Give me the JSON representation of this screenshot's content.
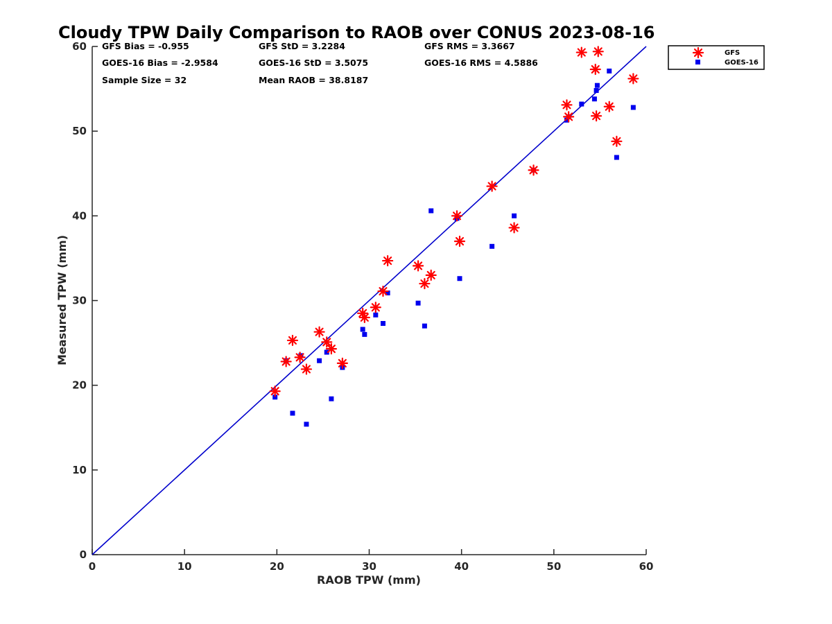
{
  "chart_data": {
    "type": "scatter",
    "title": "Cloudy TPW Daily Comparison to RAOB over CONUS 2023-08-16",
    "xlabel": "RAOB TPW (mm)",
    "ylabel": "Measured TPW (mm)",
    "xlim": [
      0,
      60
    ],
    "ylim": [
      0,
      60
    ],
    "xticks": [
      "0",
      "10",
      "20",
      "30",
      "40",
      "50",
      "60"
    ],
    "yticks": [
      "0",
      "10",
      "20",
      "30",
      "40",
      "50",
      "60"
    ],
    "grid": false,
    "legend_position": "outside-top-right",
    "stats": [
      [
        "GFS Bias = -0.955",
        "GFS StD = 3.2284",
        "GFS RMS = 3.3667"
      ],
      [
        "GOES-16 Bias = -2.9584",
        "GOES-16 StD = 3.5075",
        "GOES-16 RMS = 4.5886"
      ],
      [
        "Sample Size = 32",
        "Mean RAOB = 38.8187"
      ]
    ],
    "reference_line": {
      "from": [
        0,
        0
      ],
      "to": [
        60,
        60
      ],
      "color": "#0000cc"
    },
    "series": [
      {
        "name": "GFS",
        "marker": "asterisk",
        "color": "#ff0000",
        "points": [
          [
            19.8,
            19.3
          ],
          [
            21.0,
            22.8
          ],
          [
            21.7,
            25.3
          ],
          [
            22.5,
            23.3
          ],
          [
            23.2,
            21.9
          ],
          [
            24.6,
            26.3
          ],
          [
            25.4,
            25.1
          ],
          [
            25.9,
            24.3
          ],
          [
            27.1,
            22.6
          ],
          [
            29.3,
            28.5
          ],
          [
            29.5,
            28.0
          ],
          [
            30.7,
            29.2
          ],
          [
            31.5,
            31.1
          ],
          [
            32.0,
            34.7
          ],
          [
            35.3,
            34.1
          ],
          [
            36.0,
            32.0
          ],
          [
            36.7,
            33.0
          ],
          [
            39.5,
            40.0
          ],
          [
            39.8,
            37.0
          ],
          [
            43.3,
            43.5
          ],
          [
            45.7,
            38.6
          ],
          [
            47.8,
            45.4
          ],
          [
            51.4,
            53.1
          ],
          [
            51.6,
            51.7
          ],
          [
            53.0,
            59.3
          ],
          [
            54.5,
            57.3
          ],
          [
            54.6,
            51.8
          ],
          [
            54.8,
            59.4
          ],
          [
            56.0,
            52.9
          ],
          [
            56.8,
            48.8
          ],
          [
            58.6,
            56.2
          ]
        ]
      },
      {
        "name": "GOES-16",
        "marker": "square",
        "color": "#0000ee",
        "points": [
          [
            19.8,
            18.6
          ],
          [
            21.0,
            22.9
          ],
          [
            21.7,
            16.7
          ],
          [
            22.6,
            23.5
          ],
          [
            23.2,
            15.4
          ],
          [
            24.6,
            22.9
          ],
          [
            25.4,
            23.9
          ],
          [
            25.9,
            18.4
          ],
          [
            27.1,
            22.1
          ],
          [
            29.3,
            26.6
          ],
          [
            29.5,
            26.0
          ],
          [
            30.7,
            28.3
          ],
          [
            31.5,
            27.3
          ],
          [
            32.0,
            30.9
          ],
          [
            35.3,
            29.7
          ],
          [
            36.0,
            27.0
          ],
          [
            36.7,
            40.6
          ],
          [
            39.5,
            39.7
          ],
          [
            39.8,
            32.6
          ],
          [
            43.3,
            36.4
          ],
          [
            45.7,
            40.0
          ],
          [
            47.8,
            45.4
          ],
          [
            51.4,
            51.3
          ],
          [
            51.6,
            51.7
          ],
          [
            53.0,
            53.2
          ],
          [
            54.4,
            53.8
          ],
          [
            54.6,
            54.8
          ],
          [
            54.7,
            55.4
          ],
          [
            56.0,
            57.1
          ],
          [
            56.8,
            46.9
          ],
          [
            58.6,
            52.8
          ]
        ]
      }
    ]
  }
}
